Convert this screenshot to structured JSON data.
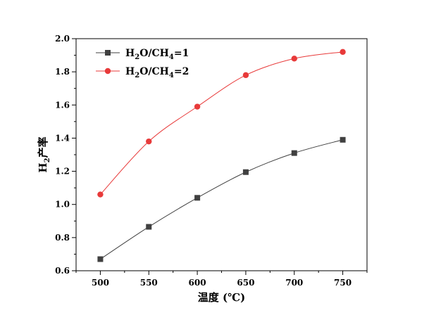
{
  "chart_data": {
    "type": "line",
    "x": [
      500,
      550,
      600,
      650,
      700,
      750
    ],
    "xlabel": "温度 (℃)",
    "ylabel_main": "H",
    "ylabel_sub": "2",
    "ylabel_rest": "产率",
    "xlim": [
      475,
      775
    ],
    "ylim": [
      0.6,
      2.0
    ],
    "xticks": [
      500,
      550,
      600,
      650,
      700,
      750
    ],
    "yticks": [
      0.6,
      0.8,
      1.0,
      1.2,
      1.4,
      1.6,
      1.8,
      2.0
    ],
    "ytick_labels": [
      "0.6",
      "0.8",
      "1.0",
      "1.2",
      "1.4",
      "1.6",
      "1.8",
      "2.0"
    ],
    "grid": false,
    "legend_position": "top-left",
    "series": [
      {
        "legend": {
          "p1": "H",
          "s1": "2",
          "p2": "O/CH",
          "s2": "4",
          "p3": "=1"
        },
        "values": [
          0.67,
          0.865,
          1.04,
          1.195,
          1.31,
          1.39
        ],
        "color": "#404040",
        "marker": "square"
      },
      {
        "legend": {
          "p1": "H",
          "s1": "2",
          "p2": "O/CH",
          "s2": "4",
          "p3": "=2"
        },
        "values": [
          1.06,
          1.38,
          1.59,
          1.78,
          1.88,
          1.92
        ],
        "color": "#e83a3a",
        "marker": "circle"
      }
    ]
  }
}
